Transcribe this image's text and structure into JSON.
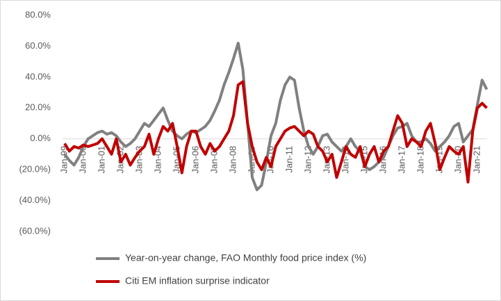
{
  "chart_data": {
    "type": "line",
    "categories": [
      "Jan-99",
      null,
      null,
      null,
      "Jan-00",
      null,
      null,
      null,
      "Jan-01",
      null,
      null,
      null,
      "Jan-02",
      null,
      null,
      null,
      "Jan-03",
      null,
      null,
      null,
      "Jan-04",
      null,
      null,
      null,
      "Jan-05",
      null,
      null,
      null,
      "Jan-06",
      null,
      null,
      null,
      "Jan-07",
      null,
      null,
      null,
      "Jan-08",
      null,
      null,
      null,
      "Jan-09",
      null,
      null,
      null,
      "Jan-10",
      null,
      null,
      null,
      "Jan-11",
      null,
      null,
      null,
      "Jan-12",
      null,
      null,
      null,
      "Jan-13",
      null,
      null,
      null,
      "Jan-14",
      null,
      null,
      null,
      "Jan-15",
      null,
      null,
      null,
      "Jan-16",
      null,
      null,
      null,
      "Jan-17",
      null,
      null,
      null,
      "Jan-18",
      null,
      null,
      null,
      "Jan-19",
      null,
      null,
      null,
      "Jan-20",
      null,
      null,
      null,
      "Jan-21",
      null,
      null
    ],
    "series": [
      {
        "name": "Year-on-year change, FAO Monthly food price index (%)",
        "color": "#808080",
        "values": [
          -10,
          -14,
          -17,
          -12,
          -5,
          0,
          2,
          4,
          5,
          3,
          4,
          2,
          -2,
          -5,
          -3,
          0,
          5,
          10,
          8,
          12,
          16,
          20,
          12,
          5,
          2,
          0,
          3,
          5,
          4,
          6,
          8,
          12,
          18,
          25,
          35,
          43,
          52,
          62,
          45,
          10,
          -25,
          -33,
          -30,
          -15,
          2,
          10,
          25,
          35,
          40,
          38,
          20,
          5,
          -5,
          -10,
          -5,
          2,
          3,
          -2,
          -5,
          -8,
          -5,
          0,
          -5,
          -8,
          -18,
          -20,
          -18,
          -15,
          -12,
          -5,
          2,
          7,
          8,
          10,
          2,
          -2,
          -2,
          0,
          -3,
          -8,
          -5,
          -2,
          2,
          8,
          10,
          -2,
          2,
          6,
          22,
          38,
          32
        ]
      },
      {
        "name": "Citi EM inflation surprise indicator",
        "color": "#c00000",
        "values": [
          -3,
          -8,
          -5,
          -6,
          -4,
          -5,
          -4,
          -3,
          0,
          -5,
          -10,
          0,
          -15,
          -10,
          -17,
          -12,
          -8,
          -5,
          3,
          -10,
          0,
          8,
          5,
          10,
          -5,
          -22,
          -5,
          5,
          5,
          -5,
          -10,
          -3,
          -8,
          -5,
          0,
          5,
          15,
          35,
          37,
          10,
          -5,
          -15,
          -20,
          -12,
          -18,
          -5,
          0,
          5,
          7,
          8,
          5,
          2,
          5,
          3,
          -5,
          -8,
          -15,
          -10,
          -25,
          -15,
          -5,
          -10,
          -12,
          -5,
          -18,
          -10,
          -5,
          -15,
          -8,
          -5,
          5,
          15,
          10,
          -5,
          0,
          -2,
          -5,
          5,
          10,
          -3,
          -20,
          -12,
          -5,
          -8,
          -10,
          -5,
          -28,
          5,
          20,
          23,
          20
        ]
      }
    ],
    "ylim": [
      -60,
      80
    ],
    "yticks": [
      {
        "value": -60,
        "label": "(60.0%)"
      },
      {
        "value": -40,
        "label": "(40.0%)"
      },
      {
        "value": -20,
        "label": "(20.0%)"
      },
      {
        "value": 0,
        "label": "0.0%"
      },
      {
        "value": 20,
        "label": "20.0%"
      },
      {
        "value": 40,
        "label": "40.0%"
      },
      {
        "value": 60,
        "label": "60.0%"
      },
      {
        "value": 80,
        "label": "80.0%"
      }
    ],
    "grid": false
  }
}
